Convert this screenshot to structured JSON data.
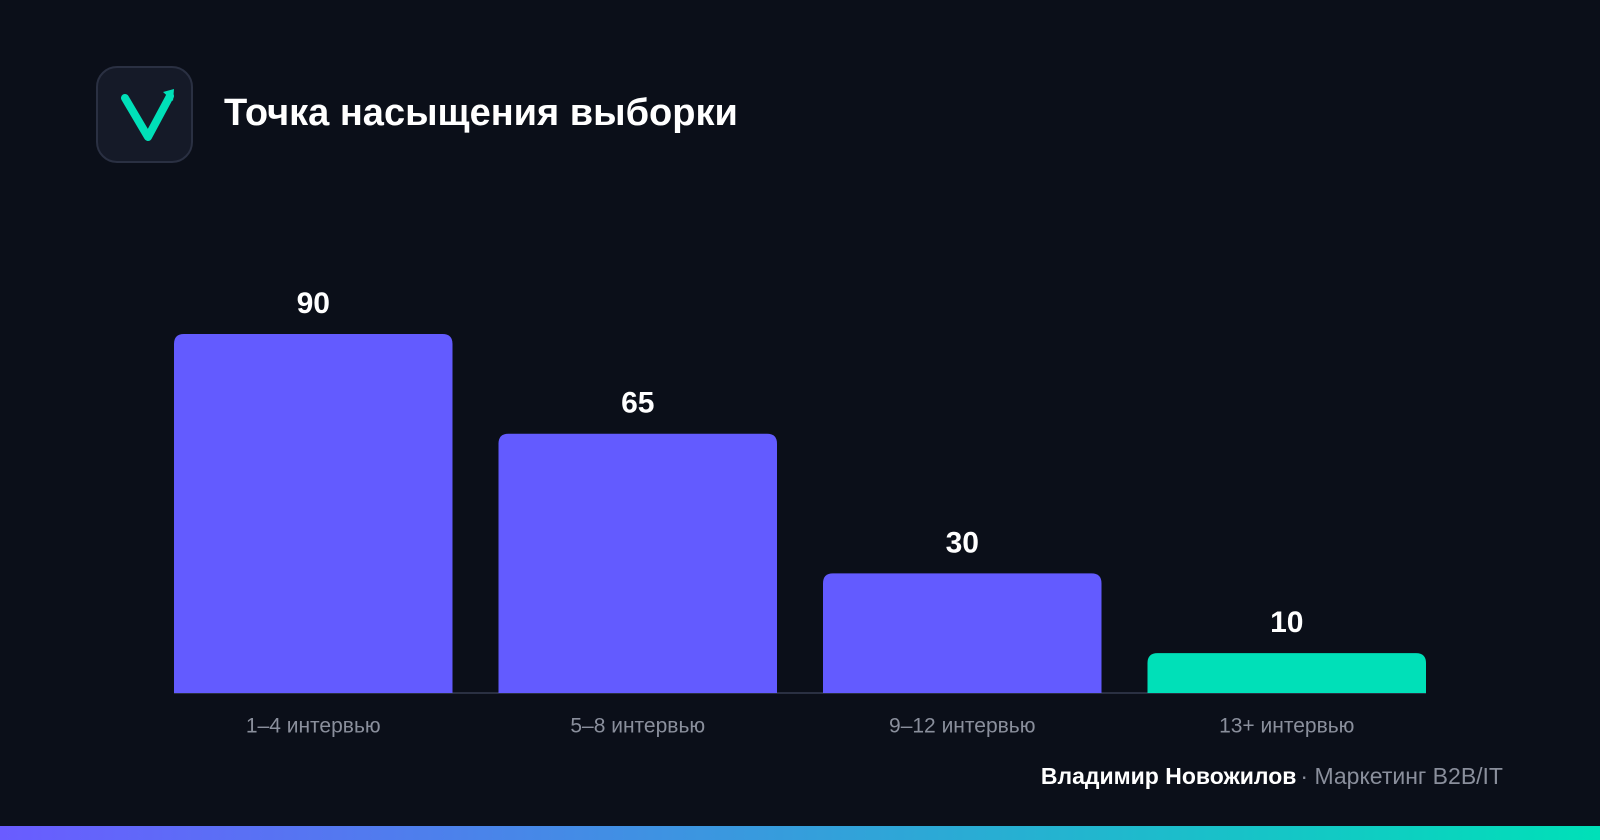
{
  "chart_data": {
    "type": "bar",
    "title": "Точка насыщения выборки",
    "categories": [
      "1–4 интервью",
      "5–8 интервью",
      "9–12 интервью",
      "13+ интервью"
    ],
    "values": [
      90,
      65,
      30,
      10
    ],
    "colors": [
      "#635bff",
      "#635bff",
      "#635bff",
      "#00e0b8"
    ],
    "ylim": [
      0,
      90
    ]
  },
  "footer": {
    "author": "Владимир Новожилов",
    "tagline": "· Маркетинг B2B/IT"
  }
}
